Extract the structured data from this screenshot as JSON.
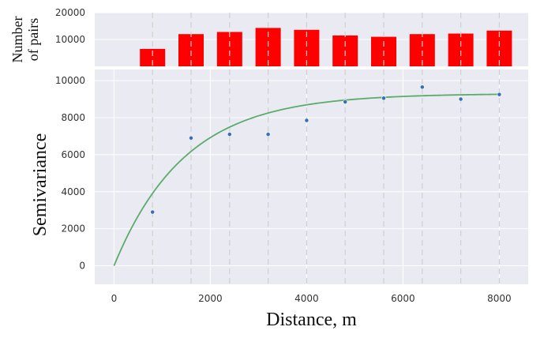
{
  "chart_data": [
    {
      "type": "bar",
      "ylabel_line1": "Number",
      "ylabel_line2": "of pairs",
      "x": [
        800,
        1600,
        2400,
        3200,
        4000,
        4800,
        5600,
        6400,
        7200,
        8000
      ],
      "values": [
        6500,
        12000,
        12800,
        14300,
        13600,
        11500,
        11000,
        12000,
        12200,
        13300
      ],
      "yticks": [
        10000,
        20000
      ],
      "ylim": [
        0,
        20000
      ],
      "bar_color": "#ff0000"
    },
    {
      "type": "scatter",
      "xlabel": "Distance, m",
      "ylabel": "Semivariance",
      "x": [
        800,
        1600,
        2400,
        3200,
        4000,
        4800,
        5600,
        6400,
        7200,
        8000
      ],
      "points": [
        2900,
        6900,
        7100,
        7100,
        7850,
        8850,
        9050,
        9650,
        9000,
        9250
      ],
      "fit_curve": {
        "sill": 9300,
        "range": 4400,
        "nugget": 0
      },
      "xticks": [
        0,
        2000,
        4000,
        6000,
        8000
      ],
      "yticks": [
        0,
        2000,
        4000,
        6000,
        8000,
        10000
      ],
      "xlim": [
        -400,
        8600
      ],
      "ylim": [
        -1000,
        10600
      ],
      "grid_color": "#d0d0d0",
      "point_color": "#3a6fb5",
      "curve_color": "#5aac6a",
      "background": "#eaeaf2"
    }
  ]
}
